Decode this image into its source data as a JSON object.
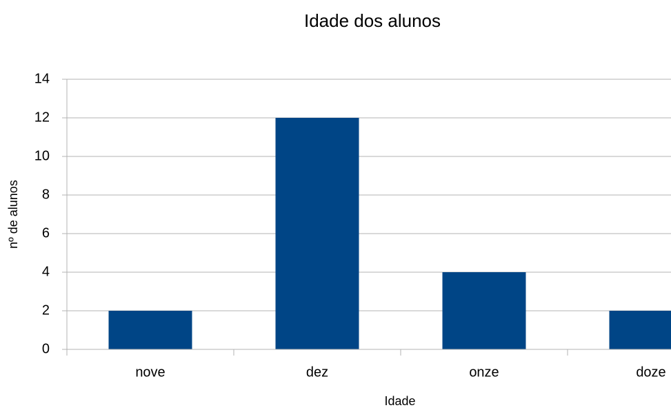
{
  "chart_data": {
    "type": "bar",
    "title": "Idade dos alunos",
    "x_label": "Idade",
    "y_label": "nº de alunos",
    "categories": [
      "nove",
      "dez",
      "onze",
      "doze"
    ],
    "values": [
      2,
      12,
      4,
      2
    ],
    "color": "#004586",
    "ylim": [
      0,
      14
    ],
    "yticks": [
      0,
      2,
      4,
      6,
      8,
      10,
      12,
      14
    ],
    "grid": true
  }
}
